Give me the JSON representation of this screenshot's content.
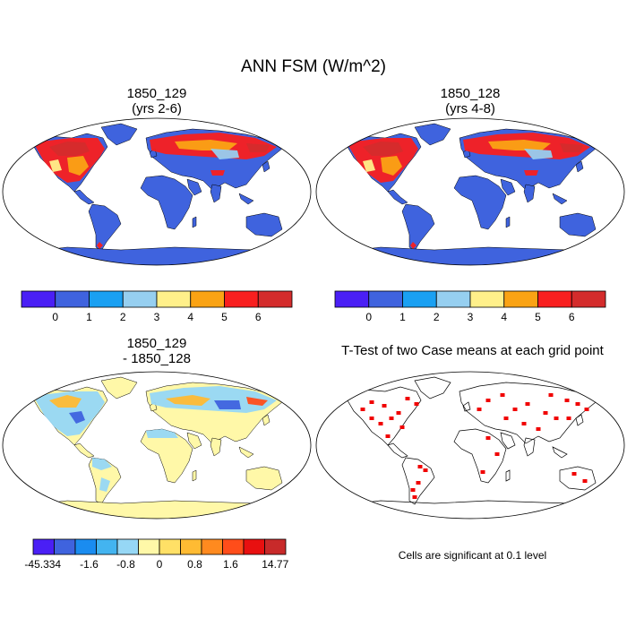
{
  "title": "ANN FSM (W/m^2)",
  "panels": [
    {
      "title_line1": "1850_129",
      "title_line2": "(yrs 2-6)"
    },
    {
      "title_line1": "1850_128",
      "title_line2": "(yrs 4-8)"
    },
    {
      "title_line1": "1850_129",
      "title_line2": "- 1850_128"
    },
    {
      "title_line1": "T-Test of two Case means at each grid point",
      "title_line2": ""
    }
  ],
  "colorbars": {
    "case": {
      "colors": [
        "#4a1ff5",
        "#3f63de",
        "#1aa0f2",
        "#96cff0",
        "#fff08a",
        "#faa314",
        "#f81f1f",
        "#d42c2c"
      ],
      "labels": [
        "0",
        "1",
        "2",
        "3",
        "4",
        "5",
        "6"
      ]
    },
    "diff": {
      "colors": [
        "#4a1ff5",
        "#3f63de",
        "#1a8cf0",
        "#43b4f0",
        "#96d7f5",
        "#fff8a8",
        "#ffe066",
        "#ffbb33",
        "#ff8a1f",
        "#ff4d1a",
        "#e81010",
        "#c82a2a"
      ],
      "labels": [
        "-45.334",
        "-1.6",
        "-0.8",
        "0",
        "0.8",
        "1.6",
        "14.77"
      ]
    }
  },
  "footnote": "Cells are significant at 0.1 level",
  "chart_data": [
    {
      "type": "heatmap",
      "title": "1850_129 (yrs 2-6)",
      "colorbar_ticks": [
        0,
        1,
        2,
        3,
        4,
        5,
        6
      ],
      "description_values": "high values (5-6) over northern North America, Greenland margins and northern Eurasia; ~1 elsewhere over land"
    },
    {
      "type": "heatmap",
      "title": "1850_128 (yrs 4-8)",
      "colorbar_ticks": [
        0,
        1,
        2,
        3,
        4,
        5,
        6
      ]
    },
    {
      "type": "heatmap",
      "title": "1850_129 - 1850_128",
      "colorbar_ticks": [
        -45.334,
        -1.6,
        -0.8,
        0,
        0.8,
        1.6,
        14.77
      ]
    },
    {
      "type": "heatmap",
      "title": "T-Test of two Case means at each grid point",
      "note": "Cells are significant at 0.1 level"
    }
  ]
}
